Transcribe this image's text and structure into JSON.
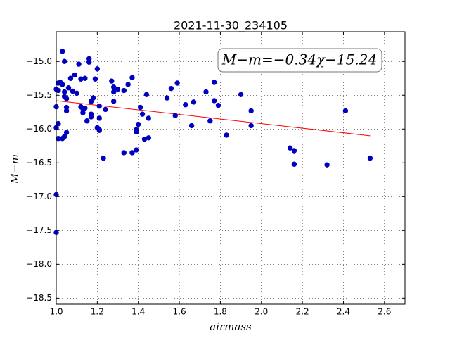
{
  "chart_data": {
    "type": "scatter",
    "title": "2021-11-30_234105",
    "x_label": "airmass",
    "y_label": "M−m",
    "annotation": "M−m=−0.34χ−15.24",
    "xlim": [
      1.0,
      2.7
    ],
    "ylim": [
      -18.59,
      -14.56
    ],
    "y_inverted": true,
    "grid": true,
    "xticks": [
      {
        "value": 1.0,
        "label": "1.0"
      },
      {
        "value": 1.2,
        "label": "1.2"
      },
      {
        "value": 1.4,
        "label": "1.4"
      },
      {
        "value": 1.6,
        "label": "1.6"
      },
      {
        "value": 1.8,
        "label": "1.8"
      },
      {
        "value": 2.0,
        "label": "2.0"
      },
      {
        "value": 2.2,
        "label": "2.2"
      },
      {
        "value": 2.4,
        "label": "2.4"
      },
      {
        "value": 2.6,
        "label": "2.6"
      }
    ],
    "yticks": [
      {
        "value": -15.0,
        "label": "−15.0"
      },
      {
        "value": -15.5,
        "label": "−15.5"
      },
      {
        "value": -16.0,
        "label": "−16.0"
      },
      {
        "value": -16.5,
        "label": "−16.5"
      },
      {
        "value": -17.0,
        "label": "−17.0"
      },
      {
        "value": -17.5,
        "label": "−17.5"
      },
      {
        "value": -18.0,
        "label": "−18.0"
      },
      {
        "value": -18.5,
        "label": "−18.5"
      }
    ],
    "points": {
      "color": "#0000c0",
      "x": [
        1.0,
        1.0,
        1.01,
        1.02,
        1.01,
        1.03,
        1.03,
        1.04,
        1.04,
        1.04,
        1.05,
        1.05,
        1.05,
        1.06,
        1.07,
        1.08,
        1.09,
        1.1,
        1.11,
        1.12,
        1.12,
        1.13,
        1.13,
        1.14,
        1.14,
        1.15,
        1.16,
        1.16,
        1.17,
        1.17,
        1.17,
        1.18,
        1.19,
        1.2,
        1.2,
        1.21,
        1.21,
        1.21,
        1.21,
        1.23,
        1.24,
        1.27,
        1.28,
        1.28,
        1.28,
        1.3,
        1.33,
        1.33,
        1.35,
        1.37,
        1.37,
        1.39,
        1.39,
        1.39,
        1.4,
        1.41,
        1.42,
        1.43,
        1.44,
        1.45,
        1.45,
        1.54,
        1.56,
        1.58,
        1.59,
        1.63,
        1.66,
        1.67,
        1.73,
        1.75,
        1.77,
        1.77,
        1.79,
        1.83,
        1.9,
        1.95,
        1.95,
        2.14,
        2.16,
        2.16,
        2.32,
        2.41,
        2.53,
        1.0,
        1.01,
        1.0,
        1.0,
        1.01,
        1.03,
        1.04,
        1.05
      ],
      "values": [
        -15.41,
        -15.67,
        -15.32,
        -15.31,
        -15.43,
        -15.34,
        -14.85,
        -15.0,
        -15.45,
        -15.52,
        -15.55,
        -15.68,
        -15.73,
        -15.39,
        -15.25,
        -15.44,
        -15.2,
        -15.47,
        -15.04,
        -15.26,
        -15.67,
        -15.7,
        -15.76,
        -15.25,
        -15.69,
        -15.88,
        -14.96,
        -15.01,
        -15.59,
        -15.78,
        -15.82,
        -15.54,
        -15.26,
        -15.11,
        -15.98,
        -16.01,
        -15.66,
        -16.02,
        -15.84,
        -16.43,
        -15.71,
        -15.29,
        -15.38,
        -15.45,
        -15.59,
        -15.41,
        -15.43,
        -16.35,
        -15.34,
        -15.24,
        -16.35,
        -16.01,
        -16.04,
        -16.31,
        -15.93,
        -15.68,
        -15.78,
        -16.15,
        -15.49,
        -15.84,
        -16.13,
        -15.54,
        -15.4,
        -15.8,
        -15.32,
        -15.64,
        -15.95,
        -15.6,
        -15.45,
        -15.88,
        -15.31,
        -15.58,
        -15.65,
        -16.09,
        -15.49,
        -15.73,
        -15.95,
        -16.28,
        -16.32,
        -16.52,
        -16.53,
        -15.73,
        -16.43,
        -15.98,
        -15.92,
        -16.97,
        -17.53,
        -16.14,
        -16.14,
        -16.11,
        -16.05
      ]
    },
    "fit": {
      "color": "#ff0000",
      "x": [
        1.0,
        2.53
      ],
      "values": [
        -15.58,
        -16.1
      ]
    }
  }
}
